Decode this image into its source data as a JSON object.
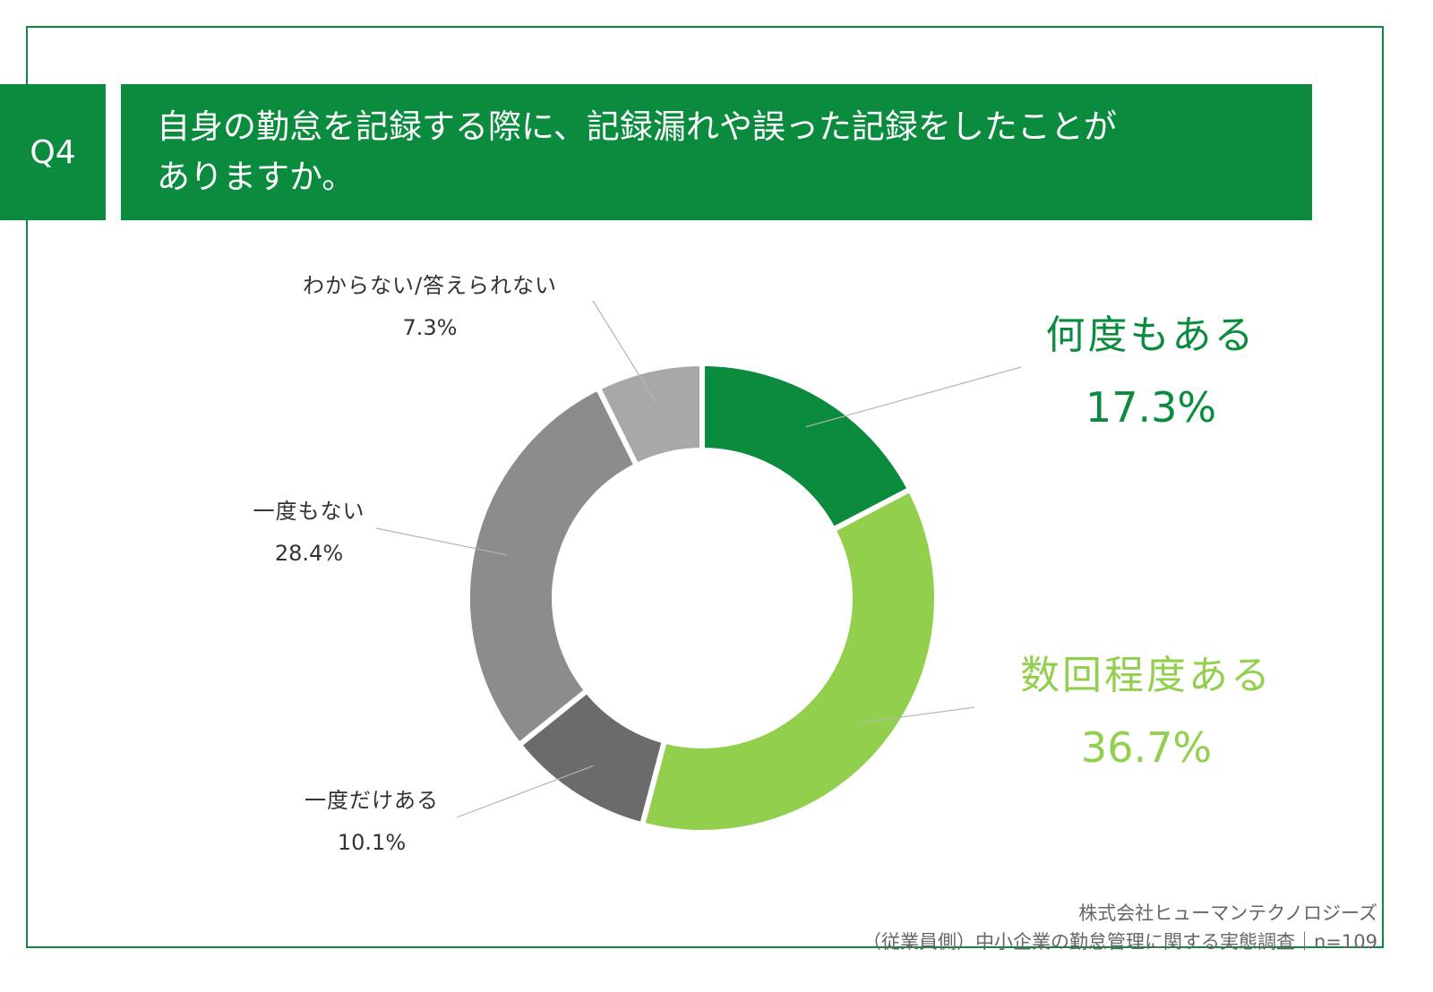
{
  "header": {
    "badge": "Q4",
    "title_line1": "自身の勤怠を記録する際に、記録漏れや誤った記録をしたことが",
    "title_line2": "ありますか。"
  },
  "chart_data": {
    "type": "pie",
    "donut": true,
    "slices": [
      {
        "label": "何度もある",
        "value": 17.3,
        "value_label": "17.3%",
        "color": "#0b8b3e"
      },
      {
        "label": "数回程度ある",
        "value": 36.7,
        "value_label": "36.7%",
        "color": "#92cf4d"
      },
      {
        "label": "一度だけある",
        "value": 10.1,
        "value_label": "10.1%",
        "color": "#6b6b6b"
      },
      {
        "label": "一度もない",
        "value": 28.4,
        "value_label": "28.4%",
        "color": "#8c8c8c"
      },
      {
        "label": "わからない/答えられない",
        "value": 7.3,
        "value_label": "7.3%",
        "color": "#a8a8a8"
      }
    ]
  },
  "footer": {
    "source_line1": "株式会社ヒューマンテクノロジーズ",
    "source_line2": "（従業員側）中小企業の勤怠管理に関する実態調査｜n=109"
  }
}
